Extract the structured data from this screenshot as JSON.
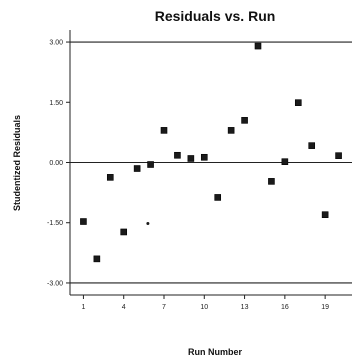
{
  "chart_data": {
    "type": "scatter",
    "title": "Residuals vs. Run",
    "xlabel": "Run Number",
    "ylabel": "Studentized Residuals",
    "xlim": [
      0,
      21
    ],
    "ylim": [
      -3.3,
      3.3
    ],
    "x_ticks": [
      1,
      4,
      7,
      10,
      13,
      16,
      19
    ],
    "x_tick_labels": [
      "1",
      "4",
      "7",
      "10",
      "13",
      "16",
      "19"
    ],
    "y_ticks": [
      3.0,
      1.5,
      0.0,
      -1.5,
      -3.0
    ],
    "y_tick_labels": [
      "3.00",
      "1.50",
      "0.00",
      "-1.50",
      "-3.00"
    ],
    "reference_lines": [
      3.0,
      0.0,
      -3.0
    ],
    "points": [
      {
        "x": 1,
        "y": -1.47
      },
      {
        "x": 2,
        "y": -2.4
      },
      {
        "x": 3,
        "y": -0.37
      },
      {
        "x": 4,
        "y": -1.73
      },
      {
        "x": 5,
        "y": -0.15
      },
      {
        "x": 6,
        "y": -0.05
      },
      {
        "x": 7,
        "y": 0.8
      },
      {
        "x": 8,
        "y": 0.18
      },
      {
        "x": 9,
        "y": 0.1
      },
      {
        "x": 10,
        "y": 0.13
      },
      {
        "x": 11,
        "y": -0.87
      },
      {
        "x": 12,
        "y": 0.8
      },
      {
        "x": 13,
        "y": 1.05
      },
      {
        "x": 14,
        "y": 2.9
      },
      {
        "x": 15,
        "y": -0.47
      },
      {
        "x": 16,
        "y": 0.02
      },
      {
        "x": 17,
        "y": 1.49
      },
      {
        "x": 18,
        "y": 0.42
      },
      {
        "x": 19,
        "y": -1.3
      },
      {
        "x": 20,
        "y": 0.17
      }
    ],
    "small_points": [
      {
        "x": 5.8,
        "y": -1.52
      }
    ],
    "colors": {
      "marker": "#1a1a1a",
      "axis": "#222222"
    }
  }
}
